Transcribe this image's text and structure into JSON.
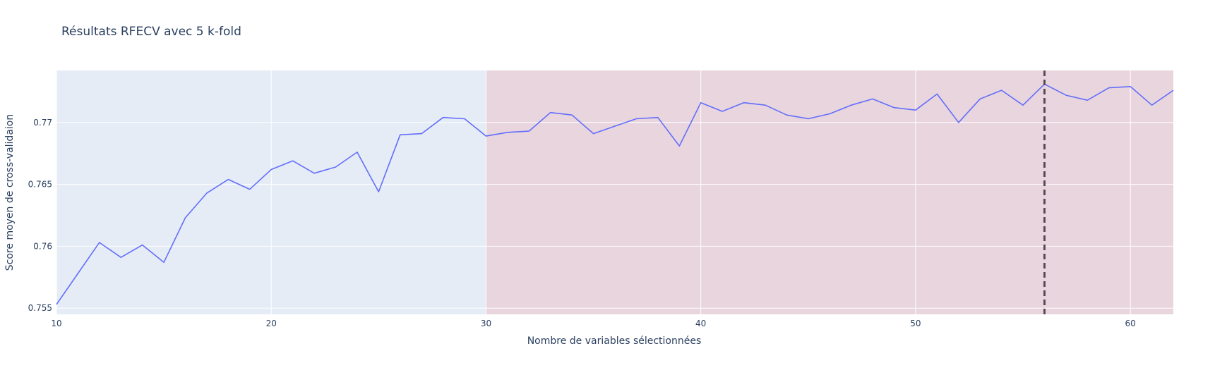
{
  "chart_data": {
    "type": "line",
    "title": "Résultats RFECV avec 5 k-fold",
    "xlabel": "Nombre de variables sélectionnées",
    "ylabel": "Score moyen de cross-validaion",
    "xlim": [
      10,
      62
    ],
    "ylim": [
      0.7545,
      0.7742
    ],
    "x_ticks": [
      10,
      20,
      30,
      40,
      50,
      60
    ],
    "x_tick_labels": [
      "10",
      "20",
      "30",
      "40",
      "50",
      "60"
    ],
    "y_ticks": [
      0.755,
      0.76,
      0.765,
      0.77
    ],
    "y_tick_labels": [
      "0.755",
      "0.76",
      "0.765",
      "0.77"
    ],
    "grid": true,
    "shaded_regions": [
      {
        "x0": 10,
        "x1": 30,
        "color": "#e5ecf6"
      },
      {
        "x0": 30,
        "x1": 62,
        "color": "#e8d5de"
      }
    ],
    "vline": {
      "x": 56,
      "color": "#5a4a55",
      "style": "dashed"
    },
    "series": [
      {
        "color": "#636efa",
        "x": [
          10,
          11,
          12,
          13,
          14,
          15,
          16,
          17,
          18,
          19,
          20,
          21,
          22,
          23,
          24,
          25,
          26,
          27,
          28,
          29,
          30,
          31,
          32,
          33,
          34,
          35,
          36,
          37,
          38,
          39,
          40,
          41,
          42,
          43,
          44,
          45,
          46,
          47,
          48,
          49,
          50,
          51,
          52,
          53,
          54,
          55,
          56,
          57,
          58,
          59,
          60,
          61,
          62
        ],
        "y": [
          0.7553,
          0.7578,
          0.7603,
          0.7591,
          0.7601,
          0.7587,
          0.7623,
          0.7643,
          0.7654,
          0.7646,
          0.7662,
          0.7669,
          0.7659,
          0.7664,
          0.7676,
          0.7644,
          0.769,
          0.7691,
          0.7704,
          0.7703,
          0.7689,
          0.7692,
          0.7693,
          0.7708,
          0.7706,
          0.7691,
          0.7697,
          0.7703,
          0.7704,
          0.7681,
          0.7716,
          0.7709,
          0.7716,
          0.7714,
          0.7706,
          0.7703,
          0.7707,
          0.7714,
          0.7719,
          0.7712,
          0.771,
          0.7723,
          0.77,
          0.7719,
          0.7726,
          0.7714,
          0.7731,
          0.7722,
          0.7718,
          0.7728,
          0.7729,
          0.7714,
          0.7726
        ]
      }
    ]
  }
}
